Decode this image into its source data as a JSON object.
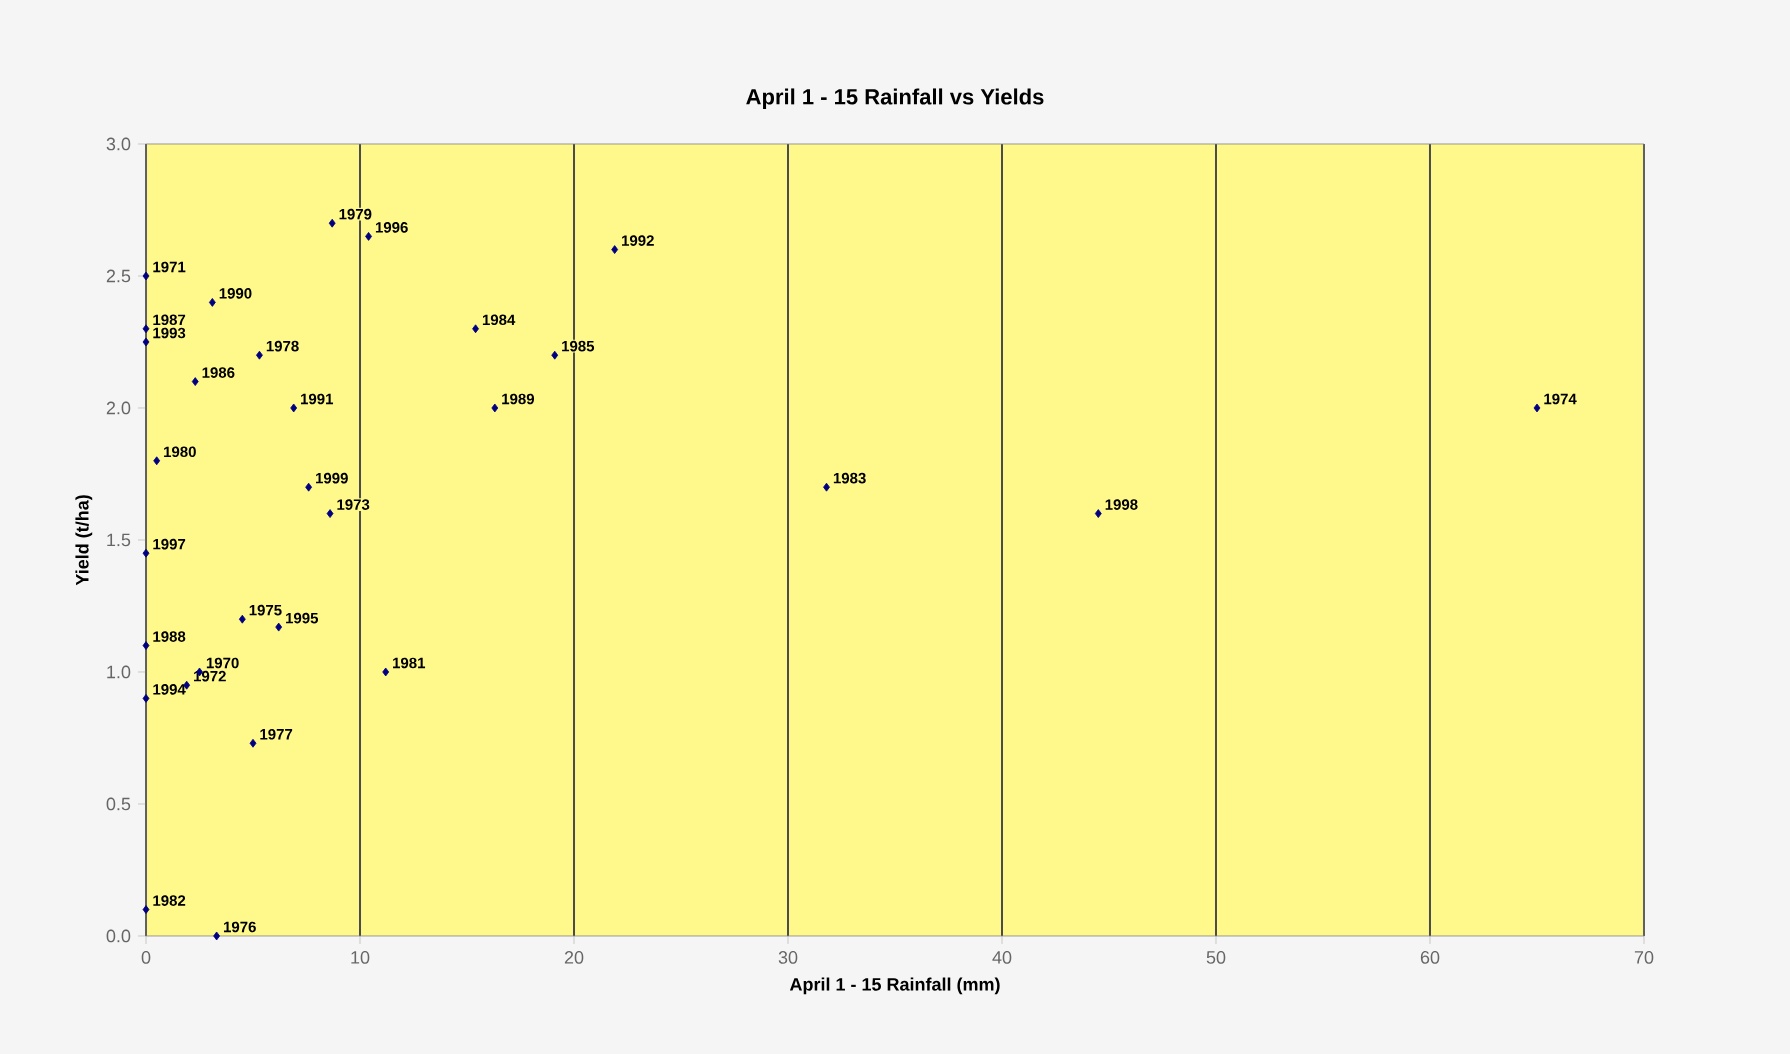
{
  "chart_data": {
    "type": "scatter",
    "title": "April 1 - 15 Rainfall vs Yields",
    "xlabel": "April 1 - 15 Rainfall (mm)",
    "ylabel": "Yield (t/ha)",
    "xlim": [
      0,
      70
    ],
    "ylim": [
      0,
      3
    ],
    "xticks": [
      0,
      10,
      20,
      30,
      40,
      50,
      60,
      70
    ],
    "yticks": [
      {
        "value": 0,
        "label": "0.0"
      },
      {
        "value": 0.5,
        "label": "0.5"
      },
      {
        "value": 1,
        "label": "1.0"
      },
      {
        "value": 1.5,
        "label": "1.5"
      },
      {
        "value": 2,
        "label": "2.0"
      },
      {
        "value": 2.5,
        "label": "2.5"
      },
      {
        "value": 3,
        "label": "3.0"
      }
    ],
    "grid": "x",
    "marker": "diamond",
    "series": [
      {
        "color": "#000080",
        "x": [
          0,
          0,
          0,
          0.5,
          0,
          0,
          0,
          0,
          3.3,
          3.1,
          8.7,
          10.4,
          5.3,
          2.3,
          6.9,
          7.6,
          8.6,
          4.5,
          6.2,
          2.5,
          1.9,
          5.0,
          11.2,
          15.4,
          19.1,
          16.3,
          21.9,
          31.8,
          44.5,
          65.0
        ],
        "values": [
          2.5,
          2.3,
          2.25,
          1.8,
          1.45,
          1.1,
          0.9,
          0.1,
          0,
          2.4,
          2.7,
          2.65,
          2.2,
          2.1,
          2.0,
          1.7,
          1.6,
          1.2,
          1.17,
          1.0,
          0.95,
          0.73,
          1.0,
          2.3,
          2.2,
          2.0,
          2.6,
          1.7,
          1.6,
          2.0
        ]
      }
    ],
    "annotations": [
      {
        "text": "1971",
        "x": 0,
        "y": 2.5
      },
      {
        "text": "1987",
        "x": 0,
        "y": 2.3
      },
      {
        "text": "1993",
        "x": 0,
        "y": 2.25
      },
      {
        "text": "1980",
        "x": 0.5,
        "y": 1.8
      },
      {
        "text": "1997",
        "x": 0,
        "y": 1.45
      },
      {
        "text": "1988",
        "x": 0,
        "y": 1.1
      },
      {
        "text": "1994",
        "x": 0,
        "y": 0.9
      },
      {
        "text": "1982",
        "x": 0,
        "y": 0.1
      },
      {
        "text": "1976",
        "x": 3.3,
        "y": 0
      },
      {
        "text": "1990",
        "x": 3.1,
        "y": 2.4
      },
      {
        "text": "1979",
        "x": 8.7,
        "y": 2.7
      },
      {
        "text": "1996",
        "x": 10.4,
        "y": 2.65
      },
      {
        "text": "1978",
        "x": 5.3,
        "y": 2.2
      },
      {
        "text": "1986",
        "x": 2.3,
        "y": 2.1
      },
      {
        "text": "1991",
        "x": 6.9,
        "y": 2.0
      },
      {
        "text": "1999",
        "x": 7.6,
        "y": 1.7
      },
      {
        "text": "1973",
        "x": 8.6,
        "y": 1.6
      },
      {
        "text": "1975",
        "x": 4.5,
        "y": 1.2
      },
      {
        "text": "1995",
        "x": 6.2,
        "y": 1.17
      },
      {
        "text": "1970",
        "x": 2.5,
        "y": 1.0
      },
      {
        "text": "1972",
        "x": 1.9,
        "y": 0.95
      },
      {
        "text": "1977",
        "x": 5.0,
        "y": 0.73
      },
      {
        "text": "1981",
        "x": 11.2,
        "y": 1.0
      },
      {
        "text": "1984",
        "x": 15.4,
        "y": 2.3
      },
      {
        "text": "1985",
        "x": 19.1,
        "y": 2.2
      },
      {
        "text": "1989",
        "x": 16.3,
        "y": 2.0
      },
      {
        "text": "1992",
        "x": 21.9,
        "y": 2.6
      },
      {
        "text": "1983",
        "x": 31.8,
        "y": 1.7
      },
      {
        "text": "1998",
        "x": 44.5,
        "y": 1.6
      },
      {
        "text": "1974",
        "x": 65.0,
        "y": 2.0
      }
    ]
  }
}
